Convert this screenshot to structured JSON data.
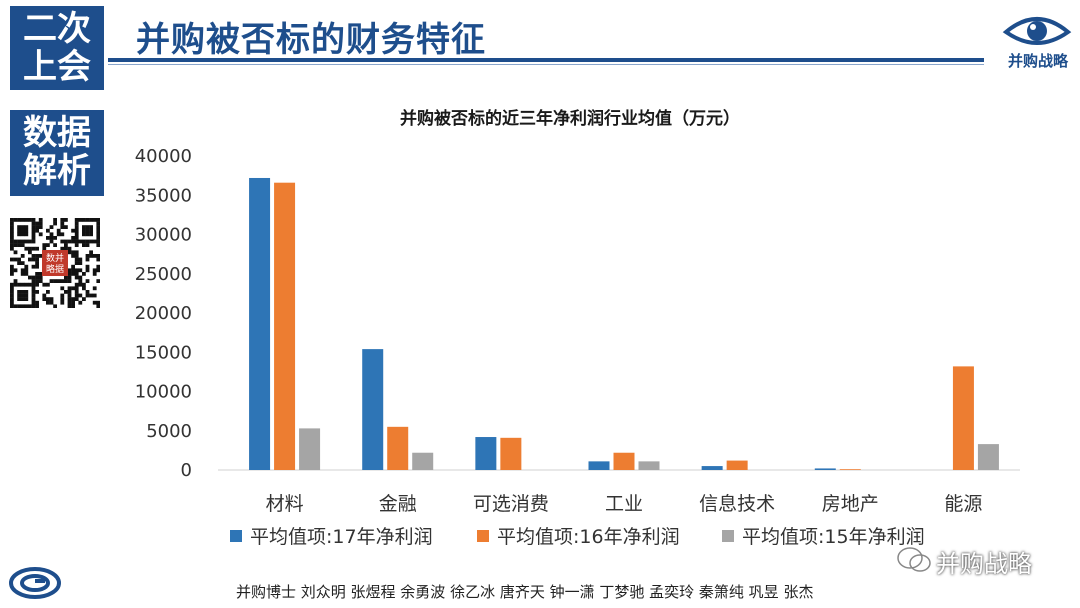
{
  "badges": {
    "top": [
      "二次",
      "上会"
    ],
    "bottom": [
      "数据",
      "解析"
    ]
  },
  "header": {
    "title": "并购被否标的财务特征",
    "brand": "并购战略",
    "brand_color": "#1e4e8c"
  },
  "qr": {
    "center_text": [
      "数并",
      "略据"
    ]
  },
  "chart_data": {
    "type": "bar",
    "title": "并购被否标的近三年净利润行业均值（万元）",
    "categories": [
      "材料",
      "金融",
      "可选消费",
      "工业",
      "信息技术",
      "房地产",
      "能源"
    ],
    "series": [
      {
        "name": "平均值项:17年净利润",
        "color": "#2e75b6",
        "values": [
          37200,
          15400,
          4200,
          1100,
          500,
          200,
          0
        ]
      },
      {
        "name": "平均值项:16年净利润",
        "color": "#ed7d31",
        "values": [
          36600,
          5500,
          4100,
          2200,
          1200,
          100,
          13200
        ]
      },
      {
        "name": "平均值项:15年净利润",
        "color": "#a5a5a5",
        "values": [
          5300,
          2200,
          0,
          1100,
          0,
          0,
          3300
        ]
      }
    ],
    "ylim": [
      0,
      40000
    ],
    "yticks": [
      0,
      5000,
      10000,
      15000,
      20000,
      25000,
      30000,
      35000,
      40000
    ],
    "grid": false,
    "legend": "bottom"
  },
  "footer": {
    "names": "并购博士  刘众明 张煜程 余勇波 徐乙冰 唐齐天 钟一潇 丁梦驰 孟奕玲 秦箫纯 巩昱 张杰",
    "watermark": "并购战略"
  }
}
